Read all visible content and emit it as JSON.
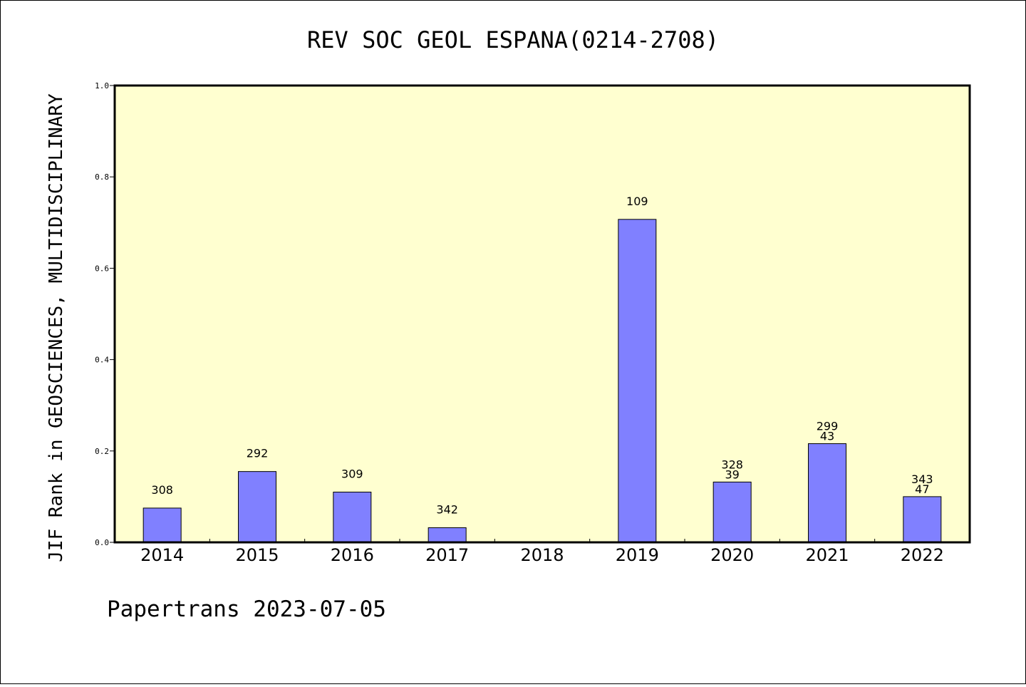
{
  "chart_data": {
    "type": "bar",
    "title": "REV SOC GEOL ESPANA(0214-2708)",
    "ylabel": "JIF Rank in GEOSCIENCES, MULTIDISCIPLINARY",
    "xlabel": "",
    "ylim": [
      0,
      1.0
    ],
    "yticks": [
      "0.0",
      "0.2",
      "0.4",
      "0.6",
      "0.8",
      "1.0"
    ],
    "categories": [
      "2014",
      "2015",
      "2016",
      "2017",
      "2018",
      "2019",
      "2020",
      "2021",
      "2022"
    ],
    "values": [
      0.075,
      0.155,
      0.11,
      0.032,
      null,
      0.707,
      0.132,
      0.216,
      0.1
    ],
    "bar_labels": [
      [
        "308"
      ],
      [
        "292"
      ],
      [
        "309"
      ],
      [
        "342"
      ],
      [],
      [
        "109"
      ],
      [
        "328",
        "39"
      ],
      [
        "299",
        "43"
      ],
      [
        "343",
        "47"
      ]
    ],
    "grid": false,
    "colors": {
      "bar": "#8080ff",
      "plot_background": "#ffffd0",
      "axis": "#000000"
    }
  },
  "footer": "Papertrans 2023-07-05"
}
